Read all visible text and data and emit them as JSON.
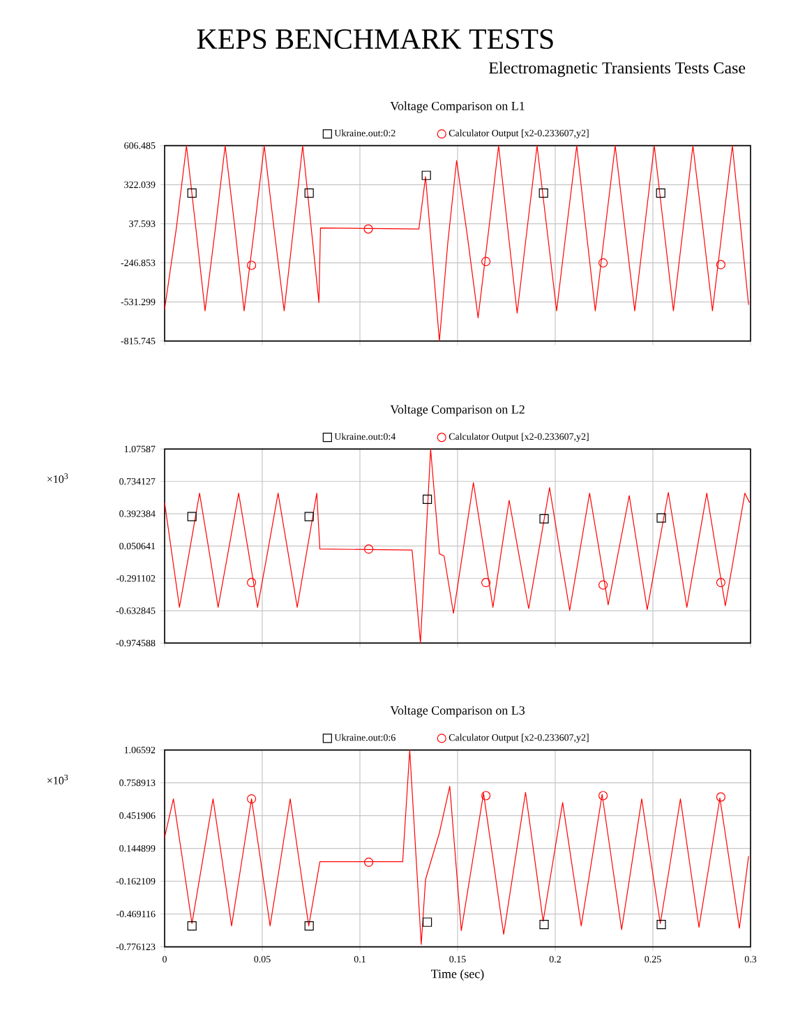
{
  "chart_data": [
    {
      "type": "line",
      "title": "Voltage Comparison on L1",
      "annotations": [
        "KEPS BENCHMARK TESTS",
        "Electromagnetic Transients Tests Case"
      ],
      "xlim": [
        0,
        0.3
      ],
      "xticks": [
        0,
        0.05,
        0.1,
        0.15,
        0.2,
        0.25,
        0.3
      ],
      "ylim": [
        -815.745,
        606.485
      ],
      "yticks": [
        -815.745,
        -531.299,
        -246.853,
        37.593,
        322.039,
        606.485
      ],
      "grid": true,
      "legend": "top",
      "tick_labels": "y",
      "series": [
        {
          "name": "Ukraine.out:0:2",
          "type": "scatter",
          "marker": "square",
          "color": "#000000",
          "x": [
            0.014,
            0.074,
            0.134,
            0.194,
            0.254
          ],
          "values": [
            261,
            261,
            390,
            261,
            261
          ]
        },
        {
          "name": "Calculator Output [x2-0.233607,y2]",
          "type": "scatter",
          "marker": "circle",
          "color": "#ff0000",
          "x": [
            0.0445,
            0.1043,
            0.1645,
            0.2245,
            0.2848
          ],
          "values": [
            -264,
            0,
            -237,
            -247,
            -260
          ]
        },
        {
          "color": "#ff0000",
          "x": [
            0,
            0.006,
            0.0112,
            0.016,
            0.0207,
            0.026,
            0.031,
            0.036,
            0.0407,
            0.046,
            0.051,
            0.056,
            0.0612,
            0.066,
            0.0707,
            0.0774,
            0.079,
            0.0798,
            0.1302,
            0.1336,
            0.1407,
            0.145,
            0.1495,
            0.155,
            0.1605,
            0.166,
            0.171,
            0.1757,
            0.1805,
            0.1856,
            0.1907,
            0.1957,
            0.2007,
            0.2058,
            0.211,
            0.2157,
            0.2205,
            0.2256,
            0.2307,
            0.2357,
            0.2407,
            0.2457,
            0.2507,
            0.2556,
            0.2605,
            0.2655,
            0.2705,
            0.2756,
            0.2805,
            0.2856,
            0.2907,
            0.299
          ],
          "values": [
            -585,
            5,
            606,
            5,
            -596,
            5,
            606,
            5,
            -596,
            5,
            606,
            5,
            -596,
            5,
            606,
            -314,
            -535,
            7,
            0,
            380,
            -815,
            -100,
            498,
            -50,
            -647,
            0,
            606,
            0,
            -613,
            0,
            606,
            5,
            -596,
            5,
            606,
            5,
            -596,
            5,
            606,
            5,
            -596,
            5,
            606,
            5,
            -596,
            5,
            606,
            5,
            -596,
            5,
            606,
            -552
          ]
        }
      ]
    },
    {
      "type": "line",
      "title": "Voltage Comparison on L2",
      "annotations": [
        "×10$^{3}$"
      ],
      "xlim": [
        0,
        0.3
      ],
      "xticks": [
        0,
        0.05,
        0.1,
        0.15,
        0.2,
        0.25,
        0.3
      ],
      "ylim": [
        -0.974588,
        1.07587
      ],
      "yticks": [
        -0.974588,
        -0.632845,
        -0.291102,
        0.050641,
        0.392384,
        0.734127,
        1.07587
      ],
      "grid": true,
      "legend": "top",
      "tick_labels": "y",
      "series": [
        {
          "name": "Ukraine.out:0:4",
          "type": "scatter",
          "marker": "square",
          "color": "#000000",
          "x": [
            0.014,
            0.074,
            0.1345,
            0.1943,
            0.2543
          ],
          "values": [
            0.363,
            0.363,
            0.545,
            0.338,
            0.348
          ]
        },
        {
          "name": "Calculator Output [x2-0.233607,y2]",
          "type": "scatter",
          "marker": "circle",
          "color": "#ff0000",
          "x": [
            0.0445,
            0.1045,
            0.1645,
            0.2245,
            0.2848
          ],
          "values": [
            -0.335,
            0.019,
            -0.335,
            -0.36,
            -0.335
          ]
        },
        {
          "color": "#ff0000",
          "x": [
            0,
            0.0076,
            0.0128,
            0.0179,
            0.0227,
            0.0274,
            0.0327,
            0.0379,
            0.0428,
            0.0476,
            0.0529,
            0.0581,
            0.063,
            0.0679,
            0.0729,
            0.0779,
            0.0795,
            0.1267,
            0.131,
            0.1362,
            0.1407,
            0.1431,
            0.1479,
            0.153,
            0.1581,
            0.1631,
            0.1681,
            0.1722,
            0.1764,
            0.1814,
            0.1864,
            0.1918,
            0.1971,
            0.2022,
            0.2074,
            0.2125,
            0.2176,
            0.2224,
            0.2271,
            0.2325,
            0.2379,
            0.2425,
            0.2471,
            0.2525,
            0.2579,
            0.2627,
            0.2674,
            0.2725,
            0.2776,
            0.2823,
            0.2871,
            0.2921,
            0.2971,
            0.2995
          ],
          "values": [
            0.51,
            -0.596,
            0.006,
            0.609,
            0.006,
            -0.596,
            0.006,
            0.609,
            0.006,
            -0.596,
            0.006,
            0.609,
            0.006,
            -0.596,
            0.006,
            0.609,
            0.019,
            0.009,
            -0.974,
            1.075,
            -0.03,
            -0.055,
            -0.66,
            0.03,
            0.72,
            0.06,
            -0.596,
            -0.03,
            0.535,
            -0.04,
            -0.61,
            0.03,
            0.668,
            0.02,
            -0.63,
            -0.01,
            0.609,
            0.02,
            -0.571,
            0.006,
            0.584,
            -0.02,
            -0.62,
            0,
            0.618,
            0.01,
            -0.596,
            0.006,
            0.609,
            0.015,
            -0.58,
            0.015,
            0.609,
            0.51
          ]
        }
      ]
    },
    {
      "type": "line",
      "title": "Voltage Comparison on L3",
      "xlabel": "Time (sec)",
      "annotations": [
        "×10$^{3}$"
      ],
      "xlim": [
        0,
        0.3
      ],
      "xticks": [
        0,
        0.05,
        0.1,
        0.15,
        0.2,
        0.25,
        0.3
      ],
      "ylim": [
        -0.776123,
        1.06592
      ],
      "yticks": [
        -0.776123,
        -0.469116,
        -0.162109,
        0.144899,
        0.451906,
        0.758913,
        1.06592
      ],
      "grid": true,
      "legend": "top",
      "series": [
        {
          "name": "Ukraine.out:0:6",
          "type": "scatter",
          "marker": "square",
          "color": "#000000",
          "x": [
            0.014,
            0.074,
            0.1345,
            0.1943,
            0.2543
          ],
          "values": [
            -0.58,
            -0.58,
            -0.545,
            -0.567,
            -0.567
          ]
        },
        {
          "name": "Calculator Output [x2-0.233607,y2]",
          "type": "scatter",
          "marker": "circle",
          "color": "#ff0000",
          "x": [
            0.0445,
            0.1045,
            0.1645,
            0.2245,
            0.2848
          ],
          "values": [
            0.609,
            0.016,
            0.639,
            0.639,
            0.626
          ]
        },
        {
          "color": "#ff0000",
          "x": [
            0,
            0.0045,
            0.0093,
            0.014,
            0.0194,
            0.0248,
            0.0296,
            0.0343,
            0.0394,
            0.0445,
            0.0493,
            0.054,
            0.0592,
            0.0643,
            0.069,
            0.0738,
            0.0795,
            0.1219,
            0.1255,
            0.1314,
            0.1336,
            0.1407,
            0.146,
            0.1519,
            0.1576,
            0.1633,
            0.1685,
            0.1736,
            0.1792,
            0.1848,
            0.1893,
            0.1938,
            0.1988,
            0.2038,
            0.2085,
            0.2133,
            0.2187,
            0.224,
            0.229,
            0.234,
            0.2392,
            0.2443,
            0.249,
            0.2538,
            0.259,
            0.2641,
            0.2688,
            0.2736,
            0.279,
            0.2843,
            0.2893,
            0.2943,
            0.299
          ],
          "values": [
            0.247,
            0.609,
            0.025,
            -0.558,
            0.025,
            0.609,
            0.015,
            -0.58,
            0.015,
            0.609,
            0.015,
            -0.58,
            0.015,
            0.609,
            0.015,
            -0.58,
            0.021,
            0.021,
            1.065,
            -0.754,
            -0.145,
            0.291,
            0.726,
            -0.624,
            0.02,
            0.661,
            0.0,
            -0.659,
            0.005,
            0.67,
            0.07,
            -0.537,
            0.02,
            0.574,
            0.0,
            -0.58,
            0.035,
            0.652,
            0.02,
            -0.615,
            0.0,
            0.609,
            0.025,
            -0.558,
            0.025,
            0.609,
            0.01,
            -0.593,
            0.01,
            0.617,
            0.01,
            -0.602,
            0.073
          ]
        }
      ]
    }
  ]
}
